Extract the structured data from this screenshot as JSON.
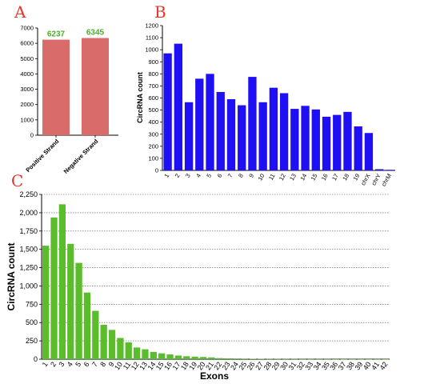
{
  "panels": {
    "a_label": "A",
    "b_label": "B",
    "c_label": "C"
  },
  "chart_data": [
    {
      "panel": "A",
      "type": "bar",
      "categories": [
        "Positive Strand",
        "Negative Strand"
      ],
      "values": [
        6237,
        6345
      ],
      "data_labels": [
        "6237",
        "6345"
      ],
      "ylim": [
        0,
        7000
      ],
      "yticks": [
        0,
        1000,
        2000,
        3000,
        4000,
        5000,
        6000,
        7000
      ],
      "ylabel": "",
      "xlabel": "",
      "grid": false,
      "bar_color": "#d96b6b",
      "label_color": "#4caf2a"
    },
    {
      "panel": "B",
      "type": "bar",
      "categories": [
        "1",
        "2",
        "3",
        "4",
        "5",
        "6",
        "7",
        "8",
        "9",
        "10",
        "11",
        "12",
        "13",
        "14",
        "15",
        "16",
        "17",
        "18",
        "19",
        "chrX",
        "chrY",
        "chrM"
      ],
      "values": [
        970,
        1050,
        565,
        760,
        800,
        650,
        590,
        540,
        775,
        565,
        685,
        640,
        510,
        535,
        505,
        445,
        460,
        485,
        365,
        310,
        10,
        5
      ],
      "ylim": [
        0,
        1200
      ],
      "yticks": [
        0,
        100,
        200,
        300,
        400,
        500,
        600,
        700,
        800,
        900,
        1000,
        1100,
        1200
      ],
      "ylabel": "CircRNA count",
      "xlabel": "",
      "grid": false,
      "bar_color": "#1f0ff5"
    },
    {
      "panel": "C",
      "type": "bar",
      "categories": [
        "1",
        "2",
        "3",
        "4",
        "5",
        "6",
        "7",
        "8",
        "9",
        "10",
        "11",
        "12",
        "13",
        "14",
        "15",
        "16",
        "17",
        "18",
        "19",
        "20",
        "21",
        "22",
        "23",
        "24",
        "25",
        "26",
        "27",
        "28",
        "29",
        "30",
        "31",
        "32",
        "33",
        "34",
        "35",
        "36",
        "37",
        "38",
        "39",
        "40",
        "41",
        "42"
      ],
      "values": [
        1550,
        1935,
        2115,
        1575,
        1315,
        910,
        660,
        470,
        400,
        290,
        230,
        160,
        135,
        100,
        80,
        65,
        50,
        40,
        35,
        30,
        25,
        15,
        12,
        10,
        8,
        6,
        5,
        4,
        4,
        3,
        3,
        2,
        2,
        2,
        2,
        1,
        1,
        1,
        1,
        1,
        1,
        1
      ],
      "ylim": [
        0,
        2250
      ],
      "yticks": [
        0,
        250,
        500,
        750,
        1000,
        1250,
        1500,
        1750,
        2000,
        2250
      ],
      "ytick_labels": [
        "0",
        "250",
        "500",
        "750",
        "1,000",
        "1,250",
        "1,500",
        "1,750",
        "2,000",
        "2,250"
      ],
      "ylabel": "CircRNA count",
      "xlabel": "Exons",
      "grid": true,
      "bar_color": "#5bbd2b"
    }
  ]
}
